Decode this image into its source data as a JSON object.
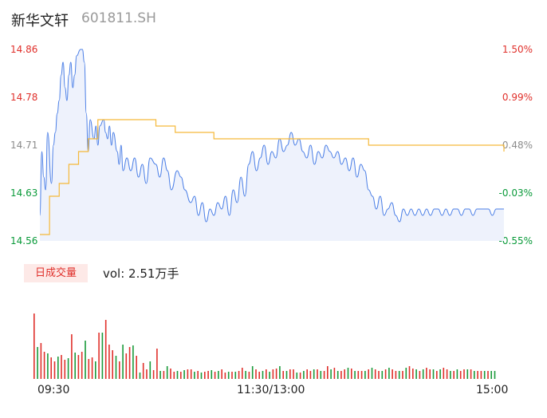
{
  "header": {
    "name": "新华文轩",
    "code": "601811.SH"
  },
  "price_axis": {
    "left_ticks": [
      "14.86",
      "14.78",
      "14.71",
      "14.63",
      "14.56"
    ],
    "right_ticks": [
      "1.50%",
      "0.99%",
      "0.48%",
      "-0.03%",
      "-0.55%"
    ],
    "right_colors": [
      "#e0302b",
      "#e0302b",
      "#8c8c8c",
      "#0a9a3a",
      "#0a9a3a"
    ]
  },
  "volume_panel": {
    "badge": "日成交量",
    "vol_text": "vol: 2.51万手"
  },
  "time_axis": [
    "09:30",
    "11:30/13:00",
    "15:00"
  ],
  "colors": {
    "price_line": "#4a7ee6",
    "avg_line": "#f5b93a",
    "up": "#e0302b",
    "down": "#1a9a3a"
  },
  "chart_data": {
    "type": "line",
    "title": "新华文轩 601811.SH",
    "ylim": [
      14.56,
      14.86
    ],
    "price_x": [
      0,
      1,
      2,
      3,
      4,
      6,
      7,
      8,
      9,
      10,
      11,
      12,
      13,
      14,
      15,
      16,
      17,
      18,
      19,
      21,
      22,
      23,
      24,
      25,
      26,
      28,
      29,
      30,
      31,
      33,
      34,
      35,
      36,
      37,
      38,
      40,
      41,
      42,
      43,
      45,
      47,
      49,
      51,
      53,
      55,
      57,
      60,
      62,
      64,
      66,
      68,
      71,
      73,
      75,
      78,
      80,
      82,
      84,
      86,
      88,
      90,
      92,
      94,
      96,
      98,
      100,
      102,
      104,
      106,
      108,
      110,
      112,
      114,
      116,
      118,
      120,
      122,
      124,
      126,
      128,
      130,
      132,
      134,
      136,
      138,
      140,
      142,
      144,
      146,
      148,
      150,
      152,
      154,
      156,
      158,
      160,
      162,
      164,
      166,
      168,
      170,
      172,
      174,
      176,
      178,
      180,
      182,
      184,
      186,
      188,
      190,
      192,
      194,
      196,
      198,
      200,
      202,
      204,
      206,
      208,
      210,
      212,
      214,
      216,
      218,
      220,
      222,
      224,
      226,
      228,
      230,
      232,
      234,
      236,
      238,
      240
    ],
    "price": [
      14.6,
      14.7,
      14.66,
      14.64,
      14.73,
      14.65,
      14.71,
      14.73,
      14.76,
      14.78,
      14.82,
      14.84,
      14.8,
      14.78,
      14.82,
      14.84,
      14.8,
      14.82,
      14.85,
      14.86,
      14.86,
      14.84,
      14.76,
      14.7,
      14.75,
      14.72,
      14.74,
      14.71,
      14.74,
      14.75,
      14.73,
      14.72,
      14.74,
      14.71,
      14.73,
      14.7,
      14.68,
      14.71,
      14.67,
      14.69,
      14.67,
      14.69,
      14.66,
      14.68,
      14.65,
      14.69,
      14.68,
      14.66,
      14.69,
      14.67,
      14.64,
      14.67,
      14.66,
      14.64,
      14.62,
      14.63,
      14.6,
      14.62,
      14.59,
      14.61,
      14.6,
      14.62,
      14.61,
      14.63,
      14.6,
      14.64,
      14.62,
      14.66,
      14.63,
      14.68,
      14.7,
      14.67,
      14.69,
      14.71,
      14.68,
      14.7,
      14.69,
      14.72,
      14.7,
      14.71,
      14.73,
      14.71,
      14.72,
      14.7,
      14.69,
      14.71,
      14.68,
      14.7,
      14.69,
      14.71,
      14.7,
      14.69,
      14.7,
      14.68,
      14.69,
      14.67,
      14.69,
      14.66,
      14.68,
      14.67,
      14.64,
      14.63,
      14.61,
      14.63,
      14.6,
      14.61,
      14.62,
      14.6,
      14.59,
      14.61,
      14.6,
      14.61,
      14.6,
      14.61,
      14.6,
      14.61,
      14.6,
      14.61,
      14.61,
      14.6,
      14.61,
      14.6,
      14.61,
      14.61,
      14.6,
      14.61,
      14.61,
      14.6,
      14.61,
      14.61,
      14.61,
      14.61,
      14.6,
      14.61,
      14.61,
      14.61
    ],
    "avg_x": [
      0,
      5,
      10,
      15,
      20,
      25,
      30,
      45,
      60,
      70,
      80,
      90,
      100,
      110,
      120,
      130,
      140,
      150,
      160,
      170,
      180,
      190,
      200,
      210,
      220,
      230,
      236,
      240
    ],
    "avg": [
      14.57,
      14.63,
      14.65,
      14.68,
      14.7,
      14.72,
      14.75,
      14.75,
      14.74,
      14.73,
      14.73,
      14.72,
      14.72,
      14.72,
      14.72,
      14.72,
      14.72,
      14.72,
      14.72,
      14.71,
      14.71,
      14.71,
      14.71,
      14.71,
      14.71,
      14.71,
      14.71,
      14.7
    ],
    "volume": [
      82,
      40,
      45,
      34,
      32,
      27,
      22,
      28,
      30,
      24,
      26,
      56,
      33,
      30,
      34,
      48,
      25,
      27,
      22,
      58,
      58,
      74,
      43,
      36,
      29,
      22,
      43,
      32,
      40,
      42,
      29,
      8,
      20,
      12,
      22,
      11,
      38,
      10,
      10,
      16,
      13,
      9,
      10,
      9,
      11,
      12,
      12,
      9,
      10,
      8,
      9,
      10,
      11,
      9,
      10,
      12,
      8,
      9,
      9,
      9,
      10,
      14,
      10,
      9,
      16,
      12,
      9,
      10,
      12,
      9,
      12,
      13,
      16,
      10,
      10,
      12,
      12,
      8,
      8,
      10,
      12,
      10,
      12,
      12,
      10,
      10,
      16,
      12,
      14,
      10,
      10,
      12,
      14,
      13,
      10,
      10,
      10,
      10,
      12,
      14,
      12,
      10,
      10,
      12,
      14,
      12,
      10,
      10,
      10,
      14,
      16,
      13,
      12,
      10,
      12,
      14,
      12,
      12,
      10,
      12,
      14,
      12,
      10,
      10,
      12,
      10,
      12,
      12,
      12,
      10,
      10,
      10,
      10,
      10,
      10,
      10
    ],
    "volume_up": [
      true,
      false,
      true,
      true,
      false,
      true,
      true,
      false,
      true,
      true,
      false,
      true,
      false,
      true,
      true,
      false,
      true,
      true,
      false,
      true,
      false,
      true,
      true,
      true,
      false,
      true,
      false,
      true,
      true,
      false,
      true,
      false,
      true,
      true,
      false,
      true,
      true,
      false,
      true,
      false,
      true,
      true,
      false,
      true,
      false,
      true,
      true,
      false,
      true,
      false,
      true,
      true,
      false,
      true,
      false,
      true,
      true,
      false,
      true,
      false,
      true,
      true,
      false,
      true,
      false,
      true,
      true,
      false,
      true,
      false,
      true,
      true,
      false,
      true,
      false,
      true,
      true,
      false,
      true,
      false,
      true,
      true,
      false,
      true,
      false,
      true,
      true,
      false,
      true,
      false,
      true,
      true,
      false,
      true,
      false,
      true,
      true,
      false,
      true,
      false,
      true,
      true,
      false,
      true,
      false,
      true,
      true,
      false,
      true,
      false,
      true,
      true,
      false,
      true,
      false,
      true,
      true,
      false,
      true,
      false,
      true,
      true,
      false,
      true,
      false,
      true,
      true,
      false,
      true,
      false,
      true,
      true,
      false,
      true,
      false,
      false
    ]
  }
}
